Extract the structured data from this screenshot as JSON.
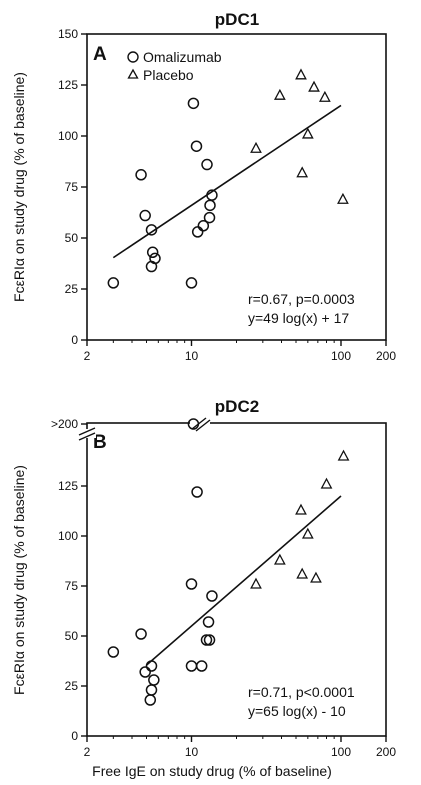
{
  "chart_data": [
    {
      "type": "scatter",
      "title": "pDC1",
      "panel_label": "A",
      "xlabel": "",
      "ylabel": "FcεRIα on study drug (% of baseline)",
      "x_scale": "log",
      "xlim": [
        2,
        200
      ],
      "ylim": [
        0,
        150
      ],
      "x_ticks": [
        2,
        10,
        100,
        200
      ],
      "x_tick_labels": [
        "2",
        "10",
        "100",
        "200"
      ],
      "y_ticks": [
        0,
        25,
        50,
        75,
        100,
        125,
        150
      ],
      "y_tick_labels": [
        "0",
        "25",
        "50",
        "75",
        "100",
        "125",
        "150"
      ],
      "legend": [
        {
          "marker": "circle",
          "label": "Omalizumab"
        },
        {
          "marker": "triangle",
          "label": "Placebo"
        }
      ],
      "series": [
        {
          "name": "Omalizumab",
          "marker": "circle",
          "points": [
            {
              "x": 3.0,
              "y": 28
            },
            {
              "x": 4.6,
              "y": 81
            },
            {
              "x": 4.9,
              "y": 61
            },
            {
              "x": 5.4,
              "y": 54
            },
            {
              "x": 5.5,
              "y": 43
            },
            {
              "x": 5.4,
              "y": 36
            },
            {
              "x": 5.7,
              "y": 40
            },
            {
              "x": 10.0,
              "y": 28
            },
            {
              "x": 10.3,
              "y": 116
            },
            {
              "x": 10.8,
              "y": 95
            },
            {
              "x": 11.0,
              "y": 53
            },
            {
              "x": 12.0,
              "y": 56
            },
            {
              "x": 12.7,
              "y": 86
            },
            {
              "x": 13.2,
              "y": 60
            },
            {
              "x": 13.3,
              "y": 66
            },
            {
              "x": 13.7,
              "y": 71
            }
          ]
        },
        {
          "name": "Placebo",
          "marker": "triangle",
          "points": [
            {
              "x": 27,
              "y": 94
            },
            {
              "x": 39,
              "y": 120
            },
            {
              "x": 54,
              "y": 130
            },
            {
              "x": 55,
              "y": 82
            },
            {
              "x": 60,
              "y": 101
            },
            {
              "x": 66,
              "y": 124
            },
            {
              "x": 78,
              "y": 119
            },
            {
              "x": 103,
              "y": 69
            }
          ]
        }
      ],
      "regression": {
        "slope": 49,
        "intercept": 17,
        "x_range": [
          3.0,
          100
        ]
      },
      "annotations": [
        "r=0.67, p=0.0003",
        "y=49 log(x) + 17"
      ]
    },
    {
      "type": "scatter",
      "title": "pDC2",
      "panel_label": "B",
      "xlabel": "Free IgE on study drug (% of baseline)",
      "ylabel": "FcεRIα on study drug (% of baseline)",
      "x_scale": "log",
      "xlim": [
        2,
        200
      ],
      "ylim": [
        0,
        150
      ],
      "y_axis_break": true,
      "x_ticks": [
        2,
        10,
        100,
        200
      ],
      "x_tick_labels": [
        "2",
        "10",
        "100",
        "200"
      ],
      "y_ticks": [
        0,
        25,
        50,
        75,
        100,
        125,
        200
      ],
      "y_tick_labels": [
        "0",
        "25",
        "50",
        "75",
        "100",
        "125",
        ">200"
      ],
      "series": [
        {
          "name": "Omalizumab",
          "marker": "circle",
          "points": [
            {
              "x": 3.0,
              "y": 42
            },
            {
              "x": 4.6,
              "y": 51
            },
            {
              "x": 4.9,
              "y": 32
            },
            {
              "x": 5.4,
              "y": 35
            },
            {
              "x": 5.4,
              "y": 23
            },
            {
              "x": 5.3,
              "y": 18
            },
            {
              "x": 5.6,
              "y": 28
            },
            {
              "x": 10.0,
              "y": 76
            },
            {
              "x": 10.0,
              "y": 35
            },
            {
              "x": 10.3,
              "y": 200
            },
            {
              "x": 10.9,
              "y": 122
            },
            {
              "x": 11.7,
              "y": 35
            },
            {
              "x": 12.6,
              "y": 48
            },
            {
              "x": 13.0,
              "y": 57
            },
            {
              "x": 13.2,
              "y": 48
            },
            {
              "x": 13.7,
              "y": 70
            }
          ]
        },
        {
          "name": "Placebo",
          "marker": "triangle",
          "points": [
            {
              "x": 27,
              "y": 76
            },
            {
              "x": 39,
              "y": 88
            },
            {
              "x": 54,
              "y": 113
            },
            {
              "x": 55,
              "y": 81
            },
            {
              "x": 60,
              "y": 101
            },
            {
              "x": 68,
              "y": 79
            },
            {
              "x": 80,
              "y": 126
            },
            {
              "x": 104,
              "y": 140
            }
          ]
        }
      ],
      "regression": {
        "slope": 65,
        "intercept": -10,
        "x_range": [
          5.0,
          100
        ]
      },
      "annotations": [
        "r=0.71, p<0.0001",
        "y=65 log(x) - 10"
      ]
    }
  ]
}
